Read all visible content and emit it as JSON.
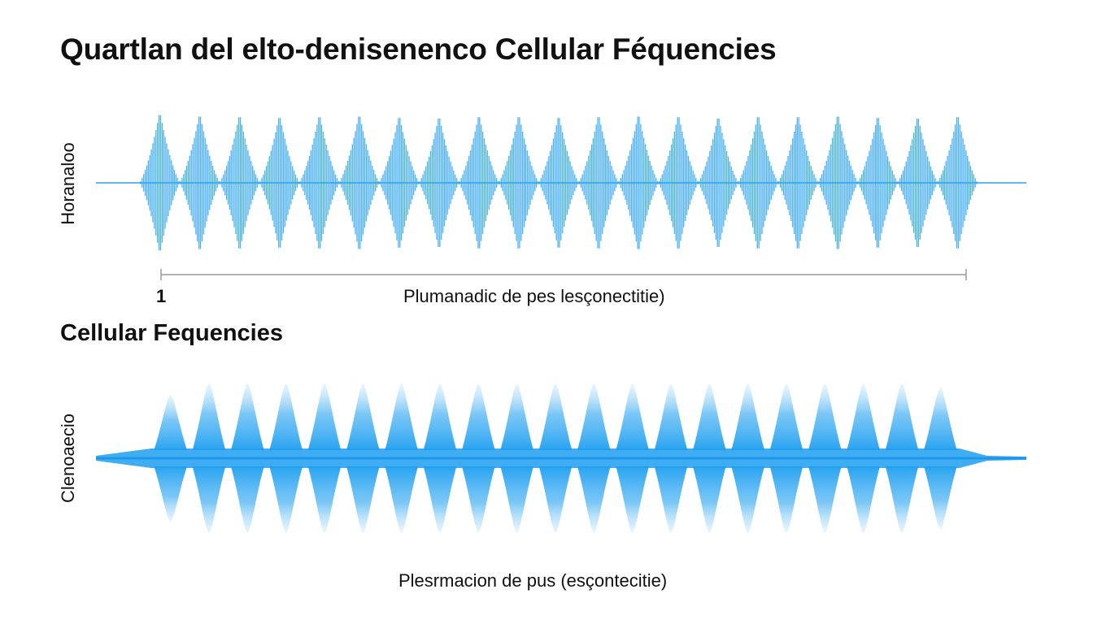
{
  "chart_data": [
    {
      "type": "line",
      "title": "Quartlan del elto-denisenenco Cellular Féquencies",
      "ylabel": "Horanaloo",
      "xlabel": "Plumanadic de pes lesçonectitie)",
      "x_tick_labels": [
        "1"
      ],
      "series": [
        {
          "color": "#2aa3f0",
          "style": "dense-oscillation",
          "packet_count": 21,
          "peak_amplitudes": [
            1.0,
            0.98,
            0.97,
            0.96,
            0.97,
            0.98,
            0.96,
            0.95,
            0.97,
            0.97,
            0.96,
            0.97,
            0.98,
            0.97,
            0.95,
            0.97,
            0.97,
            0.98,
            0.96,
            0.95,
            0.97
          ],
          "ylim": [
            -1,
            1
          ]
        }
      ]
    },
    {
      "type": "area",
      "title": "Cellular Fequencies",
      "ylabel": "Clenoaecio",
      "xlabel": "Plesrmacion de pus (esçontecitie)",
      "series": [
        {
          "color": "#1e9ff0",
          "style": "spindle-lobes",
          "lobe_count": 21,
          "lobe_amplitudes": [
            0.85,
            1.0,
            1.0,
            1.0,
            1.0,
            1.0,
            1.0,
            1.0,
            1.0,
            1.0,
            1.0,
            1.0,
            1.0,
            1.0,
            1.0,
            1.0,
            1.0,
            1.0,
            1.0,
            1.0,
            0.95
          ],
          "ylim": [
            -1,
            1
          ]
        }
      ]
    }
  ]
}
